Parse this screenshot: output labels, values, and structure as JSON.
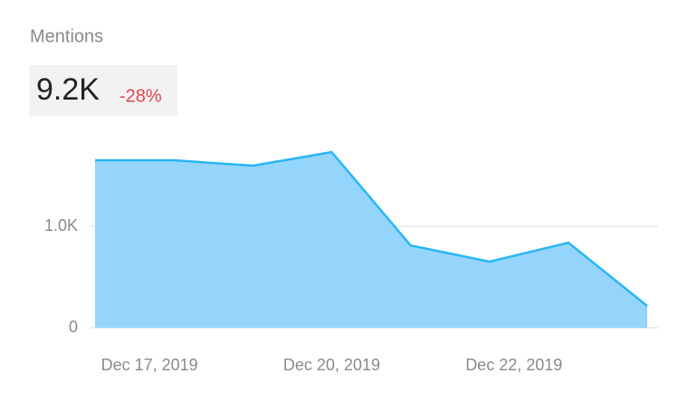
{
  "chart_data": {
    "type": "area",
    "title": "Mentions",
    "total": "9.2K",
    "change": "-28%",
    "x": [
      0,
      1,
      2,
      3,
      4,
      5,
      6,
      7
    ],
    "xlim": [
      0,
      7
    ],
    "xticks": [
      {
        "value": 0.69,
        "label": "Dec 17, 2019"
      },
      {
        "value": 3,
        "label": "Dec 20, 2019"
      },
      {
        "value": 5.31,
        "label": "Dec 22, 2019"
      }
    ],
    "series": [
      {
        "name": "Mentions",
        "color": "#29b6f6",
        "values": [
          1652,
          1652,
          1598,
          1732,
          812,
          652,
          839,
          214
        ]
      }
    ],
    "ylim": [
      0,
      2000
    ],
    "yticks": [
      0,
      {
        "value": 1000,
        "label": "1.0K"
      }
    ],
    "grid": true
  }
}
